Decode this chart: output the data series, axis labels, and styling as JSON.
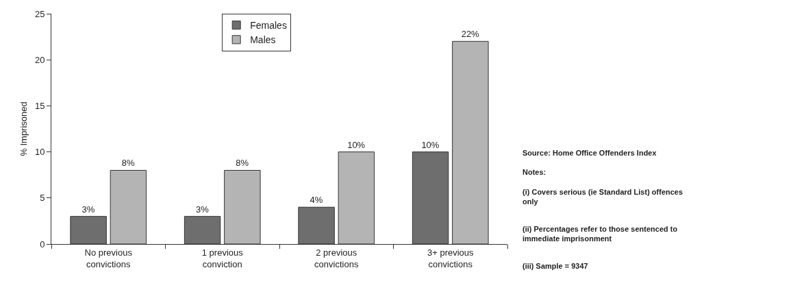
{
  "chart_data": {
    "type": "bar",
    "ylabel": "% Imprisoned",
    "categories": [
      "No previous convictions",
      "1 previous conviction",
      "2 previous convictions",
      "3+ previous convictions"
    ],
    "series": [
      {
        "name": "Females",
        "color": "#6e6e6e",
        "values": [
          3,
          3,
          4,
          10
        ],
        "value_labels": [
          "3%",
          "3%",
          "4%",
          "10%"
        ]
      },
      {
        "name": "Males",
        "color": "#b4b4b4",
        "values": [
          8,
          8,
          10,
          22
        ],
        "value_labels": [
          "8%",
          "8%",
          "10%",
          "22%"
        ]
      }
    ],
    "ylim": [
      0,
      25
    ],
    "yticks": [
      0,
      5,
      10,
      15,
      20,
      25
    ],
    "grid": false,
    "legend": "top",
    "annotations": [
      "Source: Home Office Offenders Index",
      "Notes:",
      "(i) Covers serious (ie Standard List) offences only",
      "(ii) Percentages refer to those sentenced to immediate imprisonment",
      "(iii) Sample = 9347"
    ]
  }
}
